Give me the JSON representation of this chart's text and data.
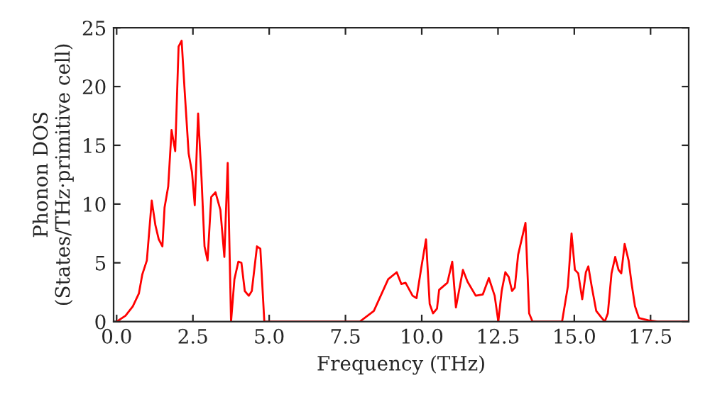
{
  "chart_data": {
    "type": "line",
    "xlabel": "Frequency (THz)",
    "ylabel": "Phonon DOS\n(States/THz·primitive cell)",
    "xlim": [
      -0.1,
      18.75
    ],
    "ylim": [
      0,
      25
    ],
    "xticks": [
      {
        "value": 0,
        "label": "0.0"
      },
      {
        "value": 2.5,
        "label": "2.5"
      },
      {
        "value": 5,
        "label": "5.0"
      },
      {
        "value": 7.5,
        "label": "7.5"
      },
      {
        "value": 10,
        "label": "10.0"
      },
      {
        "value": 12.5,
        "label": "12.5"
      },
      {
        "value": 15,
        "label": "15.0"
      },
      {
        "value": 17.5,
        "label": "17.5"
      }
    ],
    "yticks": [
      0,
      5,
      10,
      15,
      20,
      25
    ],
    "grid": false,
    "legend": false,
    "marker": "none",
    "line_style": "solid",
    "series": [
      {
        "color": "#ff0000",
        "x": [
          0,
          0.29,
          0.53,
          0.73,
          0.84,
          0.99,
          1.15,
          1.27,
          1.38,
          1.5,
          1.57,
          1.69,
          1.8,
          1.92,
          2.03,
          2.13,
          2.23,
          2.36,
          2.47,
          2.56,
          2.67,
          2.78,
          2.88,
          2.98,
          3.1,
          3.24,
          3.4,
          3.53,
          3.64,
          3.75,
          3.86,
          3.99,
          4.09,
          4.2,
          4.33,
          4.43,
          4.6,
          4.71,
          4.84,
          7.97,
          8.43,
          8.9,
          9.18,
          9.33,
          9.47,
          9.7,
          9.83,
          9.98,
          10.14,
          10.26,
          10.37,
          10.5,
          10.57,
          10.84,
          11.0,
          11.12,
          11.35,
          11.5,
          11.77,
          12.0,
          12.2,
          12.39,
          12.51,
          12.62,
          12.74,
          12.85,
          12.96,
          13.05,
          13.16,
          13.4,
          13.52,
          13.63,
          14.6,
          14.79,
          14.91,
          15.02,
          15.13,
          15.26,
          15.38,
          15.46,
          15.57,
          15.72,
          15.87,
          16.0,
          16.1,
          16.22,
          16.34,
          16.45,
          16.54,
          16.65,
          16.78,
          16.88,
          16.99,
          17.12,
          17.43,
          17.73,
          18.75
        ],
        "values": [
          0,
          0.5,
          1.3,
          2.4,
          4.0,
          5.2,
          10.3,
          8.2,
          7.0,
          6.4,
          9.7,
          11.5,
          16.3,
          14.5,
          23.4,
          23.9,
          19.6,
          14.3,
          12.7,
          9.9,
          17.7,
          12.3,
          6.4,
          5.2,
          10.6,
          11.0,
          9.5,
          5.5,
          13.5,
          0,
          3.6,
          5.1,
          5.0,
          2.6,
          2.2,
          2.6,
          6.4,
          6.2,
          0,
          0,
          0.9,
          3.6,
          4.2,
          3.2,
          3.3,
          2.2,
          2.0,
          4.5,
          7.0,
          1.5,
          0.7,
          1.1,
          2.7,
          3.3,
          5.1,
          1.2,
          4.4,
          3.4,
          2.2,
          2.3,
          3.7,
          2.2,
          0,
          2.6,
          4.2,
          3.8,
          2.6,
          2.9,
          5.7,
          8.4,
          0.7,
          0,
          0,
          3.0,
          7.5,
          4.4,
          4.1,
          1.9,
          4.2,
          4.7,
          3.0,
          0.9,
          0.4,
          0,
          0.7,
          4.1,
          5.5,
          4.4,
          4.1,
          6.6,
          5.2,
          3.2,
          1.3,
          0.3,
          0.1,
          0,
          0
        ]
      }
    ]
  }
}
